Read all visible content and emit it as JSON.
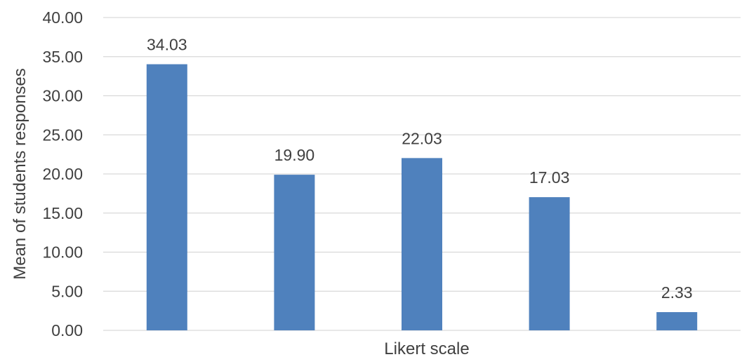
{
  "chart_data": {
    "type": "bar",
    "title": "",
    "categories": [
      "",
      "",
      "",
      "",
      ""
    ],
    "values": [
      34.03,
      19.9,
      22.03,
      17.03,
      2.33
    ],
    "data_labels": [
      "34.03",
      "19.90",
      "22.03",
      "17.03",
      "2.33"
    ],
    "xlabel": "Likert scale",
    "ylabel": "Mean of students responses",
    "ylim": [
      0,
      40
    ],
    "yticks": [
      "0.00",
      "5.00",
      "10.00",
      "15.00",
      "20.00",
      "25.00",
      "30.00",
      "35.00",
      "40.00"
    ],
    "grid": true,
    "legend": "none",
    "bar_color": "#4f81bd"
  }
}
